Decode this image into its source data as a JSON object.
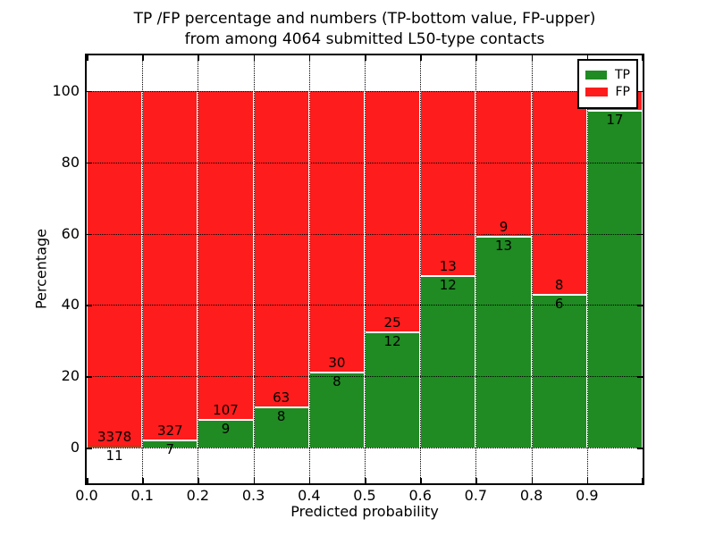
{
  "figure": {
    "title_line1": "TP /FP percentage and numbers (TP-bottom value, FP-upper)",
    "title_line2": "from among 4064 submitted L50-type contacts",
    "background_color": "#ffffff"
  },
  "axes": {
    "xlabel": "Predicted probability",
    "ylabel": "Percentage",
    "x_tick_labels": [
      "0.0",
      "0.1",
      "0.2",
      "0.3",
      "0.4",
      "0.5",
      "0.6",
      "0.7",
      "0.8",
      "0.9"
    ],
    "y_tick_values": [
      0,
      20,
      40,
      60,
      80,
      100
    ],
    "xlim": [
      0.0,
      1.0
    ],
    "ylim": [
      -10,
      110
    ],
    "grid_style": "dotted"
  },
  "legend": {
    "position": "upper-right",
    "entries": [
      {
        "label": "TP",
        "color": "#1f8b22"
      },
      {
        "label": "FP",
        "color": "#ff1c1c"
      }
    ]
  },
  "chart_data": {
    "type": "bar",
    "stacked": true,
    "normalized_to_percent": 100,
    "title": "TP /FP percentage and numbers (TP-bottom value, FP-upper) from among 4064 submitted L50-type contacts",
    "xlabel": "Predicted probability",
    "ylabel": "Percentage",
    "xlim": [
      0.0,
      1.0
    ],
    "ylim": [
      -10,
      110
    ],
    "grid": true,
    "legend_position": "upper-right",
    "total_contacts": 4064,
    "bin_width": 0.1,
    "bin_starts": [
      0.0,
      0.1,
      0.2,
      0.3,
      0.4,
      0.5,
      0.6,
      0.7,
      0.8,
      0.9
    ],
    "categories": [
      "0.0-0.1",
      "0.1-0.2",
      "0.2-0.3",
      "0.3-0.4",
      "0.4-0.5",
      "0.5-0.6",
      "0.6-0.7",
      "0.7-0.8",
      "0.8-0.9",
      "0.9-1.0"
    ],
    "series": [
      {
        "name": "TP",
        "color": "#1f8b22",
        "counts": [
          11,
          7,
          9,
          8,
          8,
          12,
          12,
          13,
          6,
          17
        ]
      },
      {
        "name": "FP",
        "color": "#ff1c1c",
        "counts": [
          3378,
          327,
          107,
          63,
          30,
          25,
          13,
          9,
          8,
          null
        ]
      }
    ],
    "tp_percent": [
      0.3,
      2.1,
      7.8,
      11.3,
      21.1,
      32.4,
      48.0,
      59.1,
      42.9,
      94.4
    ],
    "note_hidden_label": "FP count label of last bar is covered by the legend box"
  }
}
